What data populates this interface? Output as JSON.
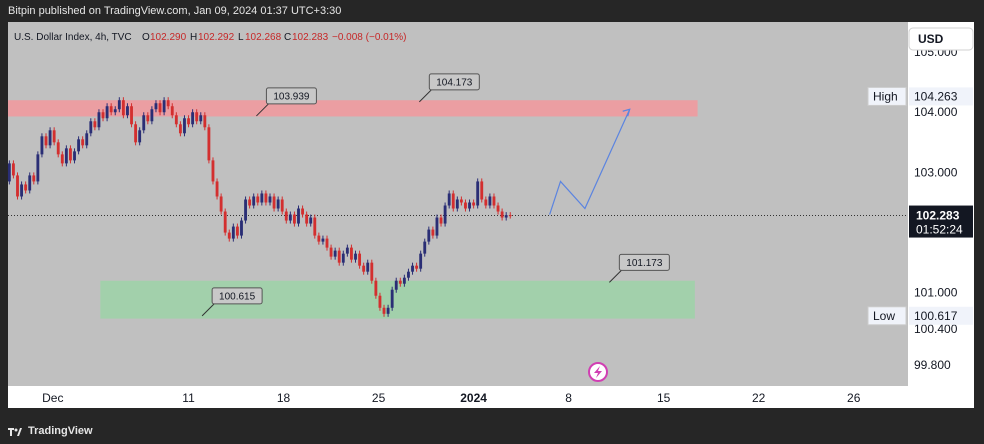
{
  "header": {
    "publisher_line": "Bitpin published on TradingView.com, Jan 09, 2024 01:37 UTC+3:30"
  },
  "footer": {
    "brand": "TradingView"
  },
  "chart_data": {
    "type": "candlestick",
    "symbol_line": "U.S. Dollar Index, 4h, TVC",
    "ohlc": {
      "o_label": "O",
      "o_value": "102.290",
      "h_label": "H",
      "h_value": "102.292",
      "l_label": "L",
      "l_value": "102.268",
      "c_label": "C",
      "c_value": "102.283",
      "change": "−0.008 (−0.01%)"
    },
    "currency": "USD",
    "y_ticks": [
      "105.000",
      "104.000",
      "103.000",
      "101.000",
      "100.400",
      "99.800"
    ],
    "y_tick_values": [
      105.0,
      104.0,
      103.0,
      101.0,
      100.4,
      99.8
    ],
    "x_ticks": [
      "Dec",
      "11",
      "18",
      "25",
      "2024",
      "8",
      "15",
      "22",
      "26"
    ],
    "x_tick_days": [
      0,
      10,
      17,
      24,
      31,
      38,
      45,
      52,
      59
    ],
    "ylim": [
      99.45,
      105.5
    ],
    "xlim": [
      -3.3,
      63.0
    ],
    "price_label": {
      "value": "102.283",
      "countdown": "01:52:24",
      "price": 102.283
    },
    "high": {
      "label": "High",
      "value": "104.263",
      "price": 104.263
    },
    "low": {
      "label": "Low",
      "value": "100.617",
      "price": 100.617
    },
    "resistance_zone": {
      "from_day": -3.3,
      "to_day": 47.5,
      "low": 103.93,
      "high": 104.2,
      "color": "#ef9a9f"
    },
    "support_zone": {
      "from_day": 3.5,
      "to_day": 47.3,
      "low": 100.57,
      "high": 101.2,
      "color": "#9fd1a8"
    },
    "annotations": [
      {
        "text": "103.939",
        "day": 15.0,
        "price": 103.939
      },
      {
        "text": "104.173",
        "day": 27.0,
        "price": 104.173
      },
      {
        "text": "100.615",
        "day": 11.0,
        "price": 100.615
      },
      {
        "text": "101.173",
        "day": 41.0,
        "price": 101.173
      }
    ],
    "projection": {
      "days": [
        36.6,
        37.4,
        39.2,
        42.5
      ],
      "prices": [
        102.3,
        102.85,
        102.4,
        104.05
      ],
      "color": "#5b84e0"
    },
    "candles": [
      [
        -3.2,
        102.85,
        103.15
      ],
      [
        -2.9,
        103.15,
        102.95
      ],
      [
        -2.6,
        102.95,
        102.6
      ],
      [
        -2.3,
        102.6,
        102.8
      ],
      [
        -2.0,
        102.8,
        102.7
      ],
      [
        -1.7,
        102.7,
        102.95
      ],
      [
        -1.4,
        102.95,
        102.85
      ],
      [
        -1.1,
        102.85,
        103.3
      ],
      [
        -0.8,
        103.3,
        103.6
      ],
      [
        -0.5,
        103.6,
        103.45
      ],
      [
        -0.2,
        103.45,
        103.7
      ],
      [
        0.1,
        103.7,
        103.5
      ],
      [
        0.4,
        103.5,
        103.3
      ],
      [
        0.7,
        103.3,
        103.15
      ],
      [
        1.0,
        103.15,
        103.4
      ],
      [
        1.3,
        103.4,
        103.2
      ],
      [
        1.6,
        103.2,
        103.35
      ],
      [
        1.9,
        103.35,
        103.55
      ],
      [
        2.2,
        103.55,
        103.45
      ],
      [
        2.5,
        103.45,
        103.65
      ],
      [
        2.8,
        103.65,
        103.85
      ],
      [
        3.1,
        103.85,
        103.75
      ],
      [
        3.4,
        103.75,
        104.0
      ],
      [
        3.7,
        104.0,
        103.9
      ],
      [
        4.0,
        103.9,
        104.1
      ],
      [
        4.3,
        104.1,
        104.0
      ],
      [
        4.6,
        104.0,
        104.05
      ],
      [
        4.9,
        104.05,
        104.2
      ],
      [
        5.2,
        104.2,
        103.95
      ],
      [
        5.5,
        103.95,
        104.1
      ],
      [
        5.8,
        104.1,
        103.8
      ],
      [
        6.1,
        103.8,
        103.5
      ],
      [
        6.4,
        103.5,
        103.7
      ],
      [
        6.7,
        103.7,
        103.95
      ],
      [
        7.0,
        103.95,
        103.85
      ],
      [
        7.3,
        103.85,
        104.05
      ],
      [
        7.6,
        104.05,
        104.15
      ],
      [
        7.9,
        104.15,
        104.0
      ],
      [
        8.2,
        104.0,
        104.2
      ],
      [
        8.5,
        104.2,
        104.1
      ],
      [
        8.8,
        104.1,
        103.95
      ],
      [
        9.1,
        103.95,
        103.8
      ],
      [
        9.4,
        103.8,
        103.65
      ],
      [
        9.7,
        103.65,
        103.9
      ],
      [
        10.0,
        103.9,
        103.8
      ],
      [
        10.3,
        103.8,
        104.0
      ],
      [
        10.6,
        104.0,
        103.85
      ],
      [
        10.9,
        103.85,
        103.95
      ],
      [
        11.2,
        103.95,
        103.75
      ],
      [
        11.5,
        103.75,
        103.2
      ],
      [
        11.8,
        103.2,
        102.85
      ],
      [
        12.1,
        102.85,
        102.6
      ],
      [
        12.4,
        102.6,
        102.35
      ],
      [
        12.7,
        102.35,
        102.0
      ],
      [
        13.0,
        102.0,
        101.9
      ],
      [
        13.3,
        101.9,
        102.1
      ],
      [
        13.6,
        102.1,
        101.95
      ],
      [
        13.9,
        101.95,
        102.2
      ],
      [
        14.2,
        102.2,
        102.55
      ],
      [
        14.5,
        102.55,
        102.45
      ],
      [
        14.8,
        102.45,
        102.6
      ],
      [
        15.1,
        102.6,
        102.5
      ],
      [
        15.4,
        102.5,
        102.65
      ],
      [
        15.7,
        102.65,
        102.5
      ],
      [
        16.0,
        102.5,
        102.6
      ],
      [
        16.3,
        102.6,
        102.4
      ],
      [
        16.6,
        102.4,
        102.55
      ],
      [
        16.9,
        102.55,
        102.35
      ],
      [
        17.2,
        102.35,
        102.2
      ],
      [
        17.5,
        102.2,
        102.3
      ],
      [
        17.8,
        102.3,
        102.15
      ],
      [
        18.1,
        102.15,
        102.4
      ],
      [
        18.4,
        102.4,
        102.3
      ],
      [
        18.7,
        102.3,
        102.15
      ],
      [
        19.0,
        102.15,
        102.25
      ],
      [
        19.3,
        102.25,
        101.95
      ],
      [
        19.6,
        101.95,
        101.85
      ],
      [
        19.9,
        101.85,
        101.9
      ],
      [
        20.2,
        101.9,
        101.75
      ],
      [
        20.5,
        101.75,
        101.6
      ],
      [
        20.8,
        101.6,
        101.7
      ],
      [
        21.1,
        101.7,
        101.5
      ],
      [
        21.4,
        101.5,
        101.65
      ],
      [
        21.7,
        101.65,
        101.75
      ],
      [
        22.0,
        101.75,
        101.55
      ],
      [
        22.3,
        101.55,
        101.65
      ],
      [
        22.6,
        101.65,
        101.45
      ],
      [
        22.9,
        101.45,
        101.35
      ],
      [
        23.2,
        101.35,
        101.5
      ],
      [
        23.5,
        101.5,
        101.2
      ],
      [
        23.8,
        101.2,
        100.95
      ],
      [
        24.1,
        100.95,
        100.75
      ],
      [
        24.4,
        100.75,
        100.65
      ],
      [
        24.7,
        100.65,
        100.75
      ],
      [
        25.0,
        100.75,
        101.05
      ],
      [
        25.3,
        101.05,
        101.2
      ],
      [
        25.6,
        101.2,
        101.15
      ],
      [
        25.9,
        101.15,
        101.25
      ],
      [
        26.2,
        101.25,
        101.35
      ],
      [
        26.5,
        101.35,
        101.45
      ],
      [
        26.8,
        101.45,
        101.4
      ],
      [
        27.1,
        101.4,
        101.65
      ],
      [
        27.4,
        101.65,
        101.85
      ],
      [
        27.7,
        101.85,
        102.05
      ],
      [
        28.0,
        102.05,
        101.95
      ],
      [
        28.3,
        101.95,
        102.25
      ],
      [
        28.6,
        102.25,
        102.15
      ],
      [
        28.9,
        102.15,
        102.45
      ],
      [
        29.2,
        102.45,
        102.65
      ],
      [
        29.5,
        102.65,
        102.4
      ],
      [
        29.8,
        102.4,
        102.55
      ],
      [
        30.1,
        102.55,
        102.5
      ],
      [
        30.4,
        102.5,
        102.4
      ],
      [
        30.7,
        102.4,
        102.5
      ],
      [
        31.0,
        102.5,
        102.45
      ],
      [
        31.3,
        102.45,
        102.85
      ],
      [
        31.6,
        102.85,
        102.55
      ],
      [
        31.9,
        102.55,
        102.45
      ],
      [
        32.2,
        102.45,
        102.6
      ],
      [
        32.5,
        102.6,
        102.45
      ],
      [
        32.8,
        102.45,
        102.35
      ],
      [
        33.1,
        102.35,
        102.25
      ],
      [
        33.4,
        102.25,
        102.29
      ],
      [
        33.7,
        102.29,
        102.283
      ]
    ]
  }
}
